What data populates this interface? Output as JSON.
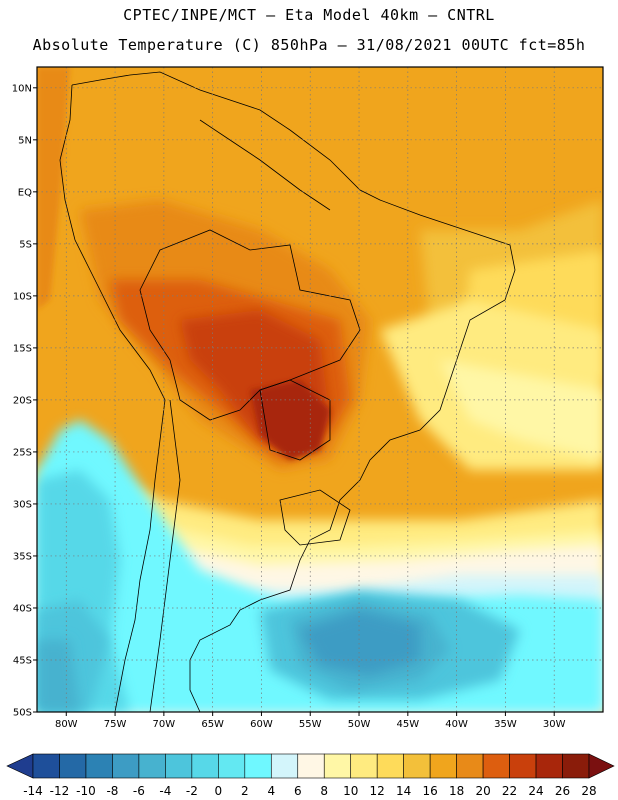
{
  "header": {
    "line1": "CPTEC/INPE/MCT –  Eta Model 40km – CNTRL",
    "line2": "Absolute Temperature (C) 850hPa – 31/08/2021 00UTC fct=85h"
  },
  "map": {
    "lat_labels": [
      "10N",
      "5N",
      "EQ",
      "5S",
      "10S",
      "15S",
      "20S",
      "25S",
      "30S",
      "35S",
      "40S",
      "45S",
      "50S"
    ],
    "lat_values": [
      10,
      5,
      0,
      -5,
      -10,
      -15,
      -20,
      -25,
      -30,
      -35,
      -40,
      -45,
      -50
    ],
    "lon_labels": [
      "80W",
      "75W",
      "70W",
      "65W",
      "60W",
      "55W",
      "50W",
      "45W",
      "40W",
      "35W",
      "30W"
    ],
    "lon_values": [
      -80,
      -75,
      -70,
      -65,
      -60,
      -55,
      -50,
      -45,
      -40,
      -35,
      -30
    ],
    "lat_range": [
      -50,
      12
    ],
    "lon_range": [
      -83,
      -25
    ],
    "variable": "Absolute Temperature (C)",
    "level": "850hPa"
  },
  "colorbar": {
    "labels": [
      "-14",
      "-12",
      "-10",
      "-8",
      "-6",
      "-4",
      "-2",
      "0",
      "2",
      "4",
      "6",
      "8",
      "10",
      "12",
      "14",
      "16",
      "18",
      "20",
      "22",
      "24",
      "26",
      "28"
    ],
    "colors": [
      "#1f3d8f",
      "#1e4f9a",
      "#2469a6",
      "#2c82b4",
      "#3d9cc4",
      "#47b2cf",
      "#4dc5dc",
      "#57d8e8",
      "#63e8f2",
      "#6ff8ff",
      "#d3f5fb",
      "#fff7e5",
      "#fff7a6",
      "#ffeb80",
      "#fedb5a",
      "#f3c03a",
      "#f0a51d",
      "#e88a18",
      "#dd5e0f",
      "#c9400c",
      "#a8260b",
      "#8a1c0a",
      "#7a1010"
    ]
  },
  "regions": [
    {
      "name": "cold-pool-patagonia",
      "temp_c": "-6"
    },
    {
      "name": "hot-core-paraguay",
      "temp_c": "26"
    },
    {
      "name": "warm-amazon",
      "temp_c": "20"
    },
    {
      "name": "cool-atlantic",
      "temp_c": "12"
    }
  ]
}
